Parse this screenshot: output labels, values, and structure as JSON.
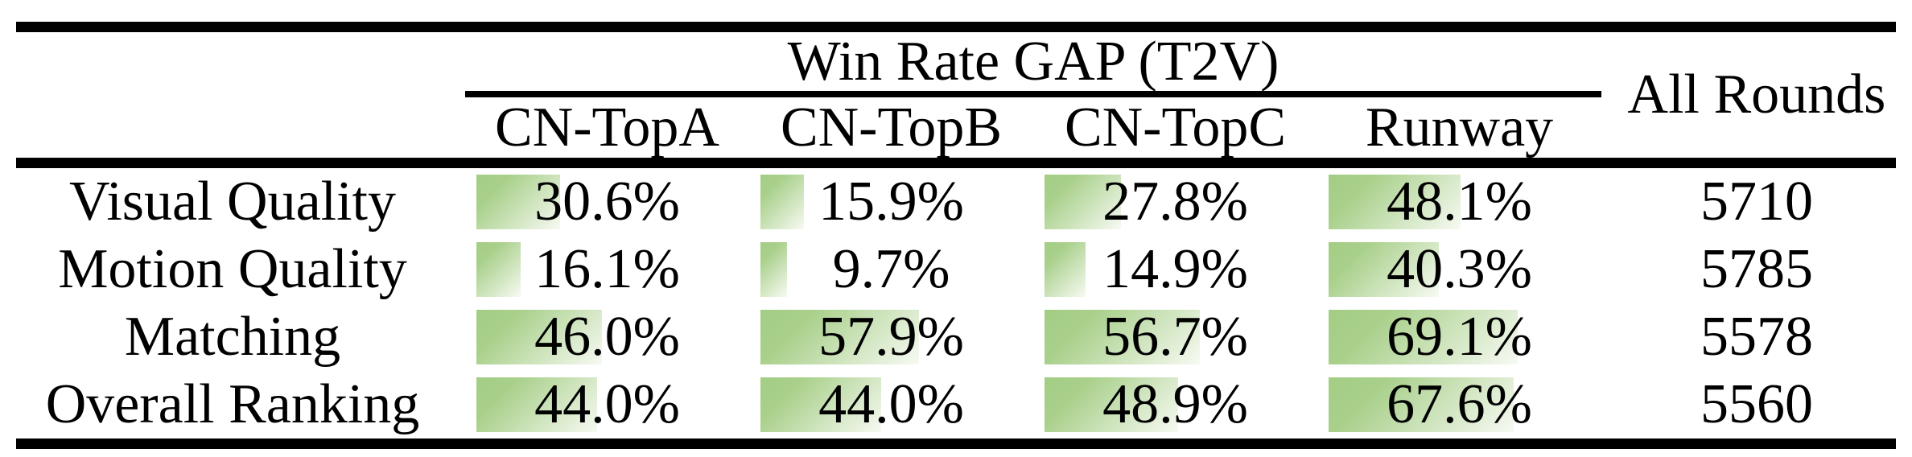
{
  "table": {
    "title": "Win Rate GAP (T2V)",
    "all_rounds_label": "All Rounds",
    "columns": [
      "CN-TopA",
      "CN-TopB",
      "CN-TopC",
      "Runway"
    ],
    "rows": [
      {
        "label": "Visual Quality",
        "values": [
          "30.6%",
          "15.9%",
          "27.8%",
          "48.1%"
        ],
        "all_rounds": "5710"
      },
      {
        "label": "Motion Quality",
        "values": [
          "16.1%",
          "9.7%",
          "14.9%",
          "40.3%"
        ],
        "all_rounds": "5785"
      },
      {
        "label": "Matching",
        "values": [
          "46.0%",
          "57.9%",
          "56.7%",
          "69.1%"
        ],
        "all_rounds": "5578"
      },
      {
        "label": "Overall Ranking",
        "values": [
          "44.0%",
          "44.0%",
          "48.9%",
          "67.6%"
        ],
        "all_rounds": "5560"
      }
    ],
    "colors": {
      "bar_green": "#a6cf88",
      "bar_fade": "#f7faf3",
      "text": "#000000",
      "rule": "#000000"
    }
  },
  "chart_data": {
    "type": "table",
    "title": "Win Rate GAP (T2V)",
    "columns": [
      "CN-TopA",
      "CN-TopB",
      "CN-TopC",
      "Runway",
      "All Rounds"
    ],
    "row_labels": [
      "Visual Quality",
      "Motion Quality",
      "Matching",
      "Overall Ranking"
    ],
    "series": [
      {
        "name": "CN-TopA",
        "values": [
          30.6,
          16.1,
          46.0,
          44.0
        ]
      },
      {
        "name": "CN-TopB",
        "values": [
          15.9,
          9.7,
          57.9,
          44.0
        ]
      },
      {
        "name": "CN-TopC",
        "values": [
          27.8,
          14.9,
          56.7,
          48.9
        ]
      },
      {
        "name": "Runway",
        "values": [
          48.1,
          40.3,
          69.1,
          67.6
        ]
      }
    ],
    "all_rounds": [
      5710,
      5785,
      5578,
      5560
    ],
    "unit": "percent",
    "bar_scale_max": 100,
    "layout": "win-rate cells rendered as left-aligned green gradient data bars behind centered percentage text"
  }
}
